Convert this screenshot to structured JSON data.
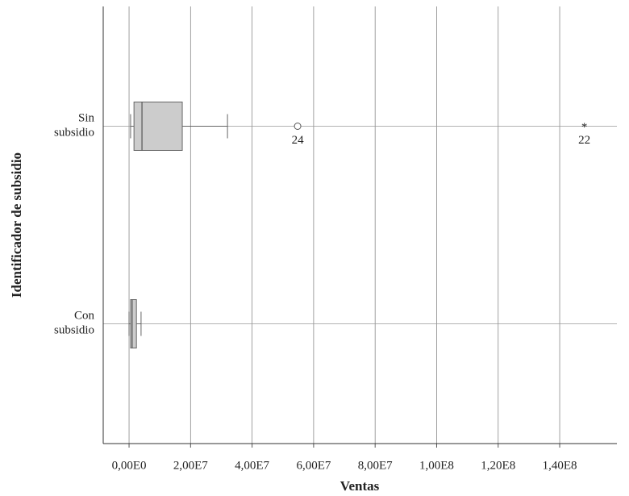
{
  "chart_data": {
    "type": "boxplot",
    "orientation": "horizontal",
    "x_label": "Ventas",
    "y_label": "Identificador de subsidio",
    "categories": [
      "Sin subsidio",
      "Con subsidio"
    ],
    "boxes": [
      {
        "whisker_low": 500000,
        "q1": 1600000,
        "median": 4200000,
        "q3": 17300000,
        "whisker_high": 32000000,
        "outliers": [
          {
            "value": 54800000,
            "label": "24",
            "marker": "circle"
          },
          {
            "value": 148000000,
            "label": "22",
            "marker": "star"
          }
        ]
      },
      {
        "whisker_low": 0,
        "q1": 500000,
        "median": 1000000,
        "q3": 2400000,
        "whisker_high": 3900000,
        "outliers": []
      }
    ],
    "color": "#cccccc",
    "xlim": [
      -8400000,
      158600000
    ],
    "xticks": [
      {
        "value": 0,
        "label": "0,00E0"
      },
      {
        "value": 20000000,
        "label": "2,00E7"
      },
      {
        "value": 40000000,
        "label": "4,00E7"
      },
      {
        "value": 60000000,
        "label": "6,00E7"
      },
      {
        "value": 80000000,
        "label": "8,00E7"
      },
      {
        "value": 100000000,
        "label": "1,00E8"
      },
      {
        "value": 120000000,
        "label": "1,20E8"
      },
      {
        "value": 140000000,
        "label": "1,40E8"
      }
    ],
    "grid": true
  }
}
